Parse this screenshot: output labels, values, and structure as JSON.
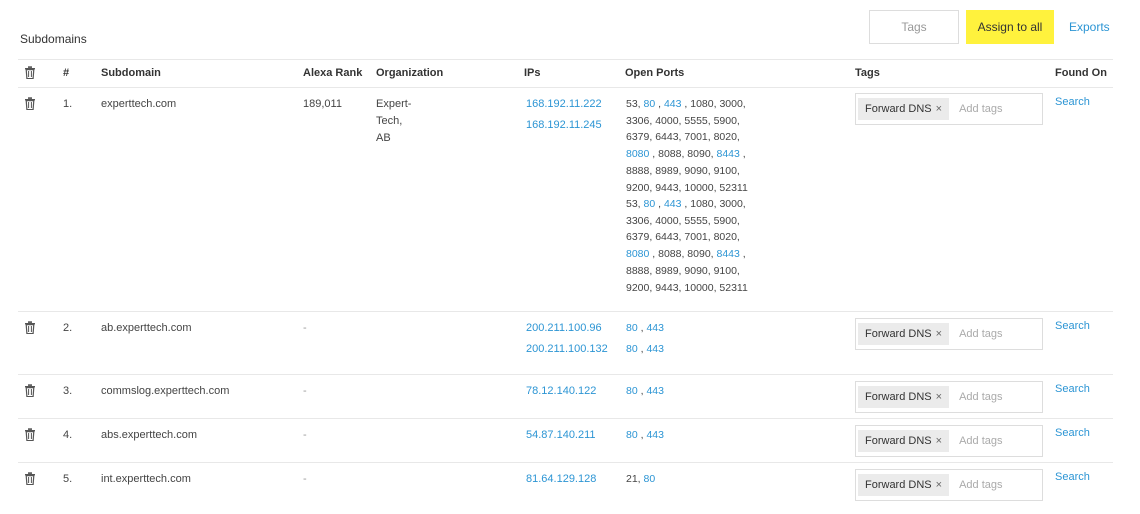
{
  "page": {
    "title": "Subdomains"
  },
  "toolbar": {
    "tags_placeholder": "Tags",
    "assign_label": "Assign to all",
    "exports_label": "Exports"
  },
  "columns": [
    "#",
    "Subdomain",
    "Alexa Rank",
    "Organization",
    "IPs",
    "Open Ports",
    "Tags",
    "Found On"
  ],
  "tag_chip": {
    "label": "Forward DNS",
    "remove": "×",
    "add_placeholder": "Add tags"
  },
  "rows": [
    {
      "num": "1.",
      "subdomain": "experttech.com",
      "alexa": "189,011",
      "org": "Expert-Tech, AB",
      "ips": [
        "168.192.11.222",
        "168.192.11.245"
      ],
      "ports": [
        [
          "53, ",
          {
            "b": "80"
          },
          " , ",
          {
            "b": "443"
          },
          " , 1080, 3000, 3306, 4000, 5555, 5900, 6379, 6443, 7001, 8020, ",
          {
            "b": "8080"
          },
          " , 8088, 8090, ",
          {
            "b": "8443"
          },
          " , 8888, 8989, 9090, 9100, 9200, 9443, 10000, 52311"
        ],
        [
          "53, ",
          {
            "b": "80"
          },
          " , ",
          {
            "b": "443"
          },
          " , 1080, 3000, 3306, 4000, 5555, 5900, 6379, 6443, 7001, 8020, ",
          {
            "b": "8080"
          },
          " , 8088, 8090, ",
          {
            "b": "8443"
          },
          " , 8888, 8989, 9090, 9100, 9200, 9443, 10000, 52311"
        ]
      ],
      "found_on": "Search"
    },
    {
      "num": "2.",
      "subdomain": "ab.experttech.com",
      "alexa": "-",
      "org": "",
      "ips": [
        "200.211.100.96",
        "200.211.100.132"
      ],
      "ports": [
        [
          {
            "b": "80"
          },
          " , ",
          {
            "b": "443"
          }
        ],
        [
          {
            "b": "80"
          },
          " , ",
          {
            "b": "443"
          }
        ]
      ],
      "found_on": "Search"
    },
    {
      "num": "3.",
      "subdomain": "commslog.experttech.com",
      "alexa": "-",
      "org": "",
      "ips": [
        "78.12.140.122"
      ],
      "ports": [
        [
          {
            "b": "80"
          },
          " , ",
          {
            "b": "443"
          }
        ]
      ],
      "found_on": "Search"
    },
    {
      "num": "4.",
      "subdomain": "abs.experttech.com",
      "alexa": "-",
      "org": "",
      "ips": [
        "54.87.140.211"
      ],
      "ports": [
        [
          {
            "b": "80"
          },
          " , ",
          {
            "b": "443"
          }
        ]
      ],
      "found_on": "Search"
    },
    {
      "num": "5.",
      "subdomain": "int.experttech.com",
      "alexa": "-",
      "org": "",
      "ips": [
        "81.64.129.128"
      ],
      "ports": [
        [
          "21, ",
          {
            "b": "80"
          }
        ]
      ],
      "found_on": "Search"
    }
  ]
}
